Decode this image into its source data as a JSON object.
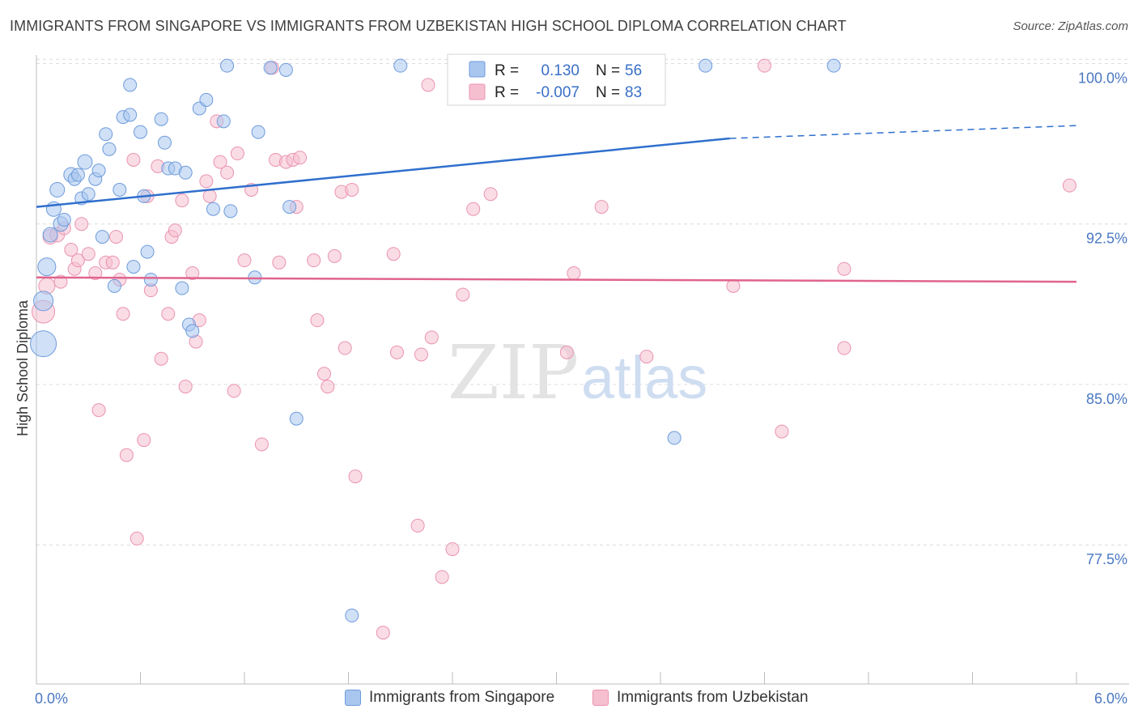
{
  "title": "IMMIGRANTS FROM SINGAPORE VS IMMIGRANTS FROM UZBEKISTAN HIGH SCHOOL DIPLOMA CORRELATION CHART",
  "source": "Source: ZipAtlas.com",
  "watermark": {
    "zip": "ZIP",
    "atlas": "atlas"
  },
  "colors": {
    "singapore_fill": "#a9c6ef",
    "singapore_stroke": "#6d9bdc",
    "singapore_line": "#2f6fcd",
    "uzbekistan_fill": "#f6bfd0",
    "uzbekistan_stroke": "#ea93b1",
    "uzbekistan_line": "#e0648e",
    "tick_blue": "#4a78c2"
  },
  "legend": {
    "rows": [
      {
        "r_label": "R =",
        "r_value": "0.130",
        "n_label": "N =",
        "n_value": "56"
      },
      {
        "r_label": "R =",
        "r_value": "-0.007",
        "n_label": "N =",
        "n_value": "83"
      }
    ]
  },
  "chart_data": {
    "type": "scatter",
    "ylabel": "High School Diploma",
    "xlim": [
      0,
      6
    ],
    "ylim": [
      71,
      100.7
    ],
    "x_tick_labels": [
      "0.0%",
      "6.0%"
    ],
    "y_ticks": [
      77.5,
      85.0,
      92.5,
      100.0
    ],
    "y_tick_labels": [
      "77.5%",
      "85.0%",
      "92.5%",
      "100.0%"
    ],
    "grid": "horizontal-dashed",
    "series": [
      {
        "name": "Immigrants from Singapore",
        "trend": {
          "x0": 0.0,
          "y0": 93.3,
          "x1": 4.0,
          "y1": 96.5,
          "dash_to_x": 6.0,
          "dash_to_y": 97.1
        },
        "points": [
          [
            0.04,
            86.9,
            16
          ],
          [
            0.04,
            88.9,
            12
          ],
          [
            0.06,
            90.5,
            11
          ],
          [
            0.08,
            92.0,
            9
          ],
          [
            0.1,
            93.2,
            9
          ],
          [
            0.12,
            94.1,
            9
          ],
          [
            0.14,
            92.5,
            9
          ],
          [
            0.16,
            92.7,
            8
          ],
          [
            0.2,
            94.8,
            9
          ],
          [
            0.22,
            94.6,
            8
          ],
          [
            0.24,
            94.8,
            8
          ],
          [
            0.26,
            93.7,
            8
          ],
          [
            0.28,
            95.4,
            9
          ],
          [
            0.3,
            93.9,
            8
          ],
          [
            0.34,
            94.6,
            8
          ],
          [
            0.36,
            95.0,
            8
          ],
          [
            0.38,
            91.9,
            8
          ],
          [
            0.4,
            96.7,
            8
          ],
          [
            0.42,
            96.0,
            8
          ],
          [
            0.45,
            89.6,
            8
          ],
          [
            0.48,
            94.1,
            8
          ],
          [
            0.5,
            97.5,
            8
          ],
          [
            0.54,
            97.6,
            8
          ],
          [
            0.54,
            99.0,
            8
          ],
          [
            0.56,
            90.5,
            8
          ],
          [
            0.6,
            96.8,
            8
          ],
          [
            0.62,
            93.8,
            8
          ],
          [
            0.64,
            91.2,
            8
          ],
          [
            0.66,
            89.9,
            8
          ],
          [
            0.72,
            97.4,
            8
          ],
          [
            0.74,
            96.3,
            8
          ],
          [
            0.76,
            95.1,
            8
          ],
          [
            0.8,
            95.1,
            8
          ],
          [
            0.84,
            89.5,
            8
          ],
          [
            0.86,
            94.9,
            8
          ],
          [
            0.88,
            87.8,
            8
          ],
          [
            0.9,
            87.5,
            8
          ],
          [
            0.94,
            97.9,
            8
          ],
          [
            0.98,
            98.3,
            8
          ],
          [
            1.02,
            93.2,
            8
          ],
          [
            1.08,
            97.3,
            8
          ],
          [
            1.1,
            99.9,
            8
          ],
          [
            1.12,
            93.1,
            8
          ],
          [
            1.26,
            90.0,
            8
          ],
          [
            1.28,
            96.8,
            8
          ],
          [
            1.35,
            99.8,
            8
          ],
          [
            1.44,
            99.7,
            8
          ],
          [
            1.46,
            93.3,
            8
          ],
          [
            1.5,
            83.4,
            8
          ],
          [
            1.82,
            74.2,
            8
          ],
          [
            2.1,
            99.9,
            8
          ],
          [
            3.1,
            99.9,
            8
          ],
          [
            3.3,
            98.6,
            8
          ],
          [
            3.68,
            82.5,
            8
          ],
          [
            3.86,
            99.9,
            8
          ],
          [
            4.6,
            99.9,
            8
          ]
        ]
      },
      {
        "name": "Immigrants from Uzbekistan",
        "trend": {
          "x0": 0.0,
          "y0": 90.0,
          "x1": 6.0,
          "y1": 89.8
        },
        "points": [
          [
            0.04,
            88.4,
            14
          ],
          [
            0.06,
            89.6,
            10
          ],
          [
            0.08,
            91.9,
            9
          ],
          [
            0.12,
            92.0,
            9
          ],
          [
            0.14,
            89.8,
            8
          ],
          [
            0.16,
            92.3,
            8
          ],
          [
            0.2,
            91.3,
            8
          ],
          [
            0.22,
            90.4,
            8
          ],
          [
            0.24,
            90.8,
            8
          ],
          [
            0.26,
            92.5,
            8
          ],
          [
            0.3,
            91.1,
            8
          ],
          [
            0.34,
            90.2,
            8
          ],
          [
            0.36,
            83.8,
            8
          ],
          [
            0.4,
            90.7,
            8
          ],
          [
            0.44,
            90.7,
            8
          ],
          [
            0.46,
            91.9,
            8
          ],
          [
            0.48,
            89.9,
            8
          ],
          [
            0.5,
            88.3,
            8
          ],
          [
            0.52,
            81.7,
            8
          ],
          [
            0.56,
            95.5,
            8
          ],
          [
            0.58,
            77.8,
            8
          ],
          [
            0.62,
            82.4,
            8
          ],
          [
            0.64,
            93.8,
            8
          ],
          [
            0.66,
            89.4,
            8
          ],
          [
            0.7,
            95.2,
            8
          ],
          [
            0.72,
            86.2,
            8
          ],
          [
            0.76,
            88.3,
            8
          ],
          [
            0.78,
            91.9,
            8
          ],
          [
            0.8,
            92.2,
            8
          ],
          [
            0.84,
            93.6,
            8
          ],
          [
            0.86,
            84.9,
            8
          ],
          [
            0.9,
            90.2,
            8
          ],
          [
            0.92,
            87.0,
            8
          ],
          [
            0.94,
            88.0,
            8
          ],
          [
            0.98,
            94.5,
            8
          ],
          [
            1.0,
            93.8,
            8
          ],
          [
            1.04,
            97.3,
            8
          ],
          [
            1.06,
            95.4,
            8
          ],
          [
            1.1,
            94.9,
            8
          ],
          [
            1.14,
            84.7,
            8
          ],
          [
            1.16,
            95.8,
            8
          ],
          [
            1.2,
            90.8,
            8
          ],
          [
            1.24,
            94.1,
            8
          ],
          [
            1.3,
            82.2,
            8
          ],
          [
            1.36,
            99.8,
            8
          ],
          [
            1.38,
            95.5,
            8
          ],
          [
            1.4,
            90.7,
            8
          ],
          [
            1.44,
            95.4,
            8
          ],
          [
            1.48,
            95.5,
            8
          ],
          [
            1.5,
            93.3,
            8
          ],
          [
            1.52,
            95.6,
            8
          ],
          [
            1.6,
            90.8,
            8
          ],
          [
            1.62,
            88.0,
            8
          ],
          [
            1.66,
            85.5,
            8
          ],
          [
            1.68,
            84.9,
            8
          ],
          [
            1.72,
            91.0,
            8
          ],
          [
            1.76,
            94.0,
            8
          ],
          [
            1.78,
            86.7,
            8
          ],
          [
            1.82,
            94.1,
            8
          ],
          [
            1.84,
            80.7,
            8
          ],
          [
            2.0,
            73.4,
            8
          ],
          [
            2.06,
            91.1,
            8
          ],
          [
            2.08,
            86.5,
            8
          ],
          [
            2.2,
            78.4,
            8
          ],
          [
            2.22,
            86.4,
            8
          ],
          [
            2.26,
            99.0,
            8
          ],
          [
            2.28,
            87.2,
            8
          ],
          [
            2.34,
            76.0,
            8
          ],
          [
            2.4,
            77.3,
            8
          ],
          [
            2.46,
            89.2,
            8
          ],
          [
            2.52,
            93.2,
            8
          ],
          [
            2.62,
            93.9,
            8
          ],
          [
            3.06,
            86.5,
            8
          ],
          [
            3.1,
            90.2,
            8
          ],
          [
            3.12,
            99.9,
            8
          ],
          [
            3.26,
            93.3,
            8
          ],
          [
            3.52,
            86.3,
            8
          ],
          [
            4.02,
            89.6,
            8
          ],
          [
            4.2,
            99.9,
            8
          ],
          [
            4.3,
            82.8,
            8
          ],
          [
            4.66,
            90.4,
            8
          ],
          [
            4.66,
            86.7,
            8
          ],
          [
            5.96,
            94.3,
            8
          ]
        ]
      }
    ]
  }
}
